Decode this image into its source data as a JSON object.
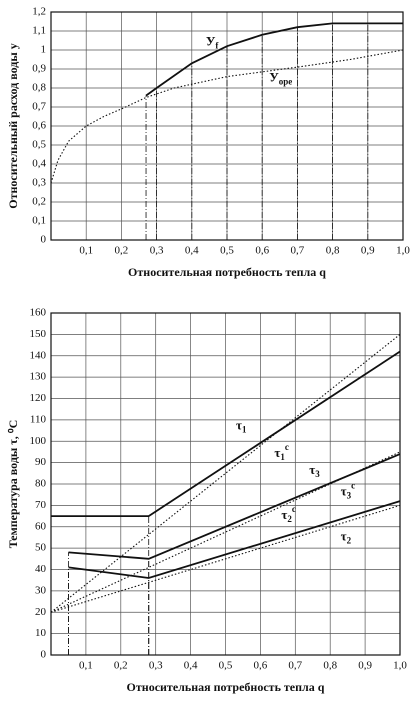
{
  "chart_data": [
    {
      "type": "line",
      "xlabel": "Относительная потребность тепла q",
      "ylabel": "Относительный расход воды у",
      "xlim": [
        0,
        1
      ],
      "ylim": [
        0,
        1.2
      ],
      "grid": true,
      "xticks": [
        {
          "value": 0.1,
          "label": "0,1"
        },
        {
          "value": 0.2,
          "label": "0,2"
        },
        {
          "value": 0.3,
          "label": "0,3"
        },
        {
          "value": 0.4,
          "label": "0,4"
        },
        {
          "value": 0.5,
          "label": "0,5"
        },
        {
          "value": 0.6,
          "label": "0,6"
        },
        {
          "value": 0.7,
          "label": "0,7"
        },
        {
          "value": 0.8,
          "label": "0,8"
        },
        {
          "value": 0.9,
          "label": "0,9"
        },
        {
          "value": 1.0,
          "label": "1,0"
        }
      ],
      "yticks": [
        0,
        {
          "value": 0.1,
          "label": "0,1"
        },
        {
          "value": 0.2,
          "label": "0,2"
        },
        {
          "value": 0.3,
          "label": "0,3"
        },
        {
          "value": 0.4,
          "label": "0,4"
        },
        {
          "value": 0.5,
          "label": "0,5"
        },
        {
          "value": 0.6,
          "label": "0,6"
        },
        {
          "value": 0.7,
          "label": "0,7"
        },
        {
          "value": 0.8,
          "label": "0,8"
        },
        {
          "value": 0.9,
          "label": "0,9"
        },
        1,
        {
          "value": 1.1,
          "label": "1,1"
        },
        {
          "value": 1.2,
          "label": "1,2"
        }
      ],
      "series": [
        {
          "name": "У",
          "subscript": "f",
          "color": "#111111",
          "style": "solid",
          "x": [
            0.27,
            0.3,
            0.4,
            0.5,
            0.6,
            0.7,
            0.8,
            0.9,
            1.0
          ],
          "values": [
            0.76,
            0.8,
            0.93,
            1.02,
            1.08,
            1.12,
            1.14,
            1.14,
            1.14
          ]
        },
        {
          "name": "У",
          "subscript": "ope",
          "color": "#111111",
          "style": "dotted",
          "x": [
            0,
            0.02,
            0.05,
            0.1,
            0.15,
            0.2,
            0.27,
            0.35,
            0.5,
            0.7,
            0.85,
            1.0
          ],
          "values": [
            0.3,
            0.42,
            0.52,
            0.6,
            0.65,
            0.69,
            0.75,
            0.8,
            0.86,
            0.91,
            0.95,
            1.0
          ]
        }
      ]
    },
    {
      "type": "line",
      "xlabel": "Относительная потребность тепла q",
      "ylabel": "Температура воды τ, ⁰С",
      "xlim": [
        0,
        1
      ],
      "ylim": [
        0,
        160
      ],
      "grid": true,
      "xticks": [
        {
          "value": 0.1,
          "label": "0,1"
        },
        {
          "value": 0.2,
          "label": "0,2"
        },
        {
          "value": 0.3,
          "label": "0,3"
        },
        {
          "value": 0.4,
          "label": "0,4"
        },
        {
          "value": 0.5,
          "label": "0,5"
        },
        {
          "value": 0.6,
          "label": "0,6"
        },
        {
          "value": 0.7,
          "label": "0,7"
        },
        {
          "value": 0.8,
          "label": "0,8"
        },
        {
          "value": 0.9,
          "label": "0,9"
        },
        {
          "value": 1.0,
          "label": "1,0"
        }
      ],
      "yticks": [
        0,
        10,
        20,
        30,
        40,
        50,
        60,
        70,
        80,
        90,
        100,
        110,
        120,
        130,
        140,
        150,
        160
      ],
      "series": [
        {
          "name": "τ",
          "subscript": "1",
          "color": "#111111",
          "style": "dotted",
          "x": [
            0,
            1
          ],
          "values": [
            20,
            150
          ]
        },
        {
          "name": "τ",
          "subscript": "1",
          "superscript": "c",
          "color": "#111111",
          "style": "solid",
          "x": [
            0,
            0.28,
            1
          ],
          "values": [
            65,
            65,
            142
          ]
        },
        {
          "name": "τ",
          "subscript": "3",
          "color": "#111111",
          "style": "dotted",
          "x": [
            0,
            1
          ],
          "values": [
            20,
            95
          ]
        },
        {
          "name": "τ",
          "subscript": "3",
          "superscript": "c",
          "color": "#111111",
          "style": "solid",
          "x": [
            0.05,
            0.28,
            1
          ],
          "values": [
            48,
            45,
            94
          ]
        },
        {
          "name": "τ",
          "subscript": "2",
          "superscript": "c",
          "color": "#111111",
          "style": "solid",
          "x": [
            0.05,
            0.28,
            1
          ],
          "values": [
            41,
            36,
            72
          ]
        },
        {
          "name": "τ",
          "subscript": "2",
          "color": "#111111",
          "style": "dotted",
          "x": [
            0,
            1
          ],
          "values": [
            20,
            70
          ]
        }
      ]
    }
  ]
}
